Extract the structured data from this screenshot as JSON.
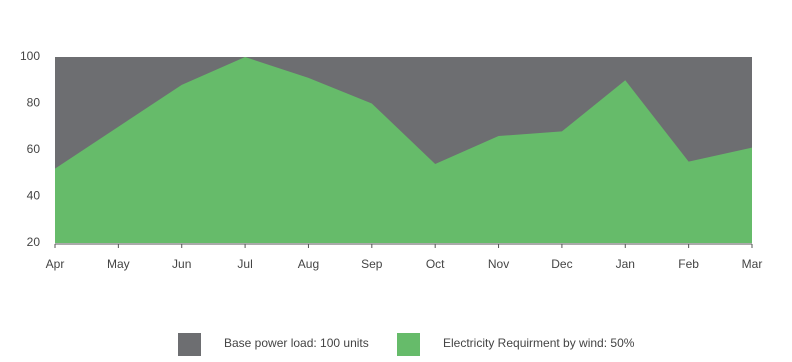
{
  "chart_data": {
    "type": "area",
    "categories": [
      "Apr",
      "May",
      "Jun",
      "Jul",
      "Aug",
      "Sep",
      "Oct",
      "Nov",
      "Dec",
      "Jan",
      "Feb",
      "Mar"
    ],
    "series": [
      {
        "name": "Base power load: 100 units",
        "color": "#6d6e71",
        "values": [
          100,
          100,
          100,
          100,
          100,
          100,
          100,
          100,
          100,
          100,
          100,
          100
        ]
      },
      {
        "name": "Electricity Requirment by wind: 50%",
        "color": "#66bb6a",
        "values": [
          52,
          70,
          88,
          100,
          91,
          80,
          54,
          66,
          68,
          90,
          55,
          61
        ]
      }
    ],
    "ylim": [
      20,
      100
    ],
    "yticks": [
      20,
      40,
      60,
      80,
      100
    ],
    "grid": false,
    "legend": "bottom"
  }
}
